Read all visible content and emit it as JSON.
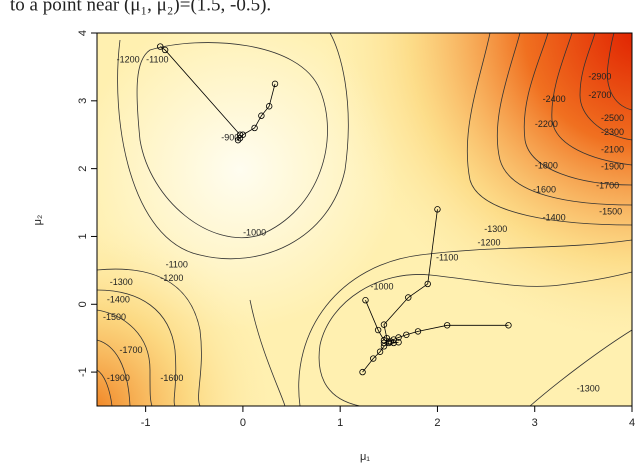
{
  "chart_data": {
    "type": "contour",
    "caption": "to a point near (μ₁, μ₂)=(1.5, -0.5).",
    "x_label": "μ₁",
    "y_label": "μ₂",
    "xlim": [
      -1.5,
      4
    ],
    "ylim": [
      -1.5,
      4
    ],
    "xticks": [
      -1,
      0,
      1,
      2,
      3,
      4
    ],
    "yticks": [
      -1,
      0,
      1,
      2,
      3,
      4
    ],
    "contour_labels": [
      {
        "level": -1200,
        "x": -1.18,
        "y": 3.6
      },
      {
        "level": -1100,
        "x": -0.88,
        "y": 3.6
      },
      {
        "level": -900,
        "x": -0.13,
        "y": 2.45
      },
      {
        "level": -1000,
        "x": 0.12,
        "y": 1.05
      },
      {
        "level": -1100,
        "x": -0.68,
        "y": 0.58
      },
      {
        "level": -1200,
        "x": -0.73,
        "y": 0.38
      },
      {
        "level": -1300,
        "x": -1.25,
        "y": 0.32
      },
      {
        "level": -1400,
        "x": -1.28,
        "y": 0.06
      },
      {
        "level": -1500,
        "x": -1.32,
        "y": -0.2
      },
      {
        "level": -1700,
        "x": -1.15,
        "y": -0.68
      },
      {
        "level": -1900,
        "x": -1.28,
        "y": -1.1
      },
      {
        "level": -1600,
        "x": -0.73,
        "y": -1.1
      },
      {
        "level": -1000,
        "x": 1.43,
        "y": 0.25
      },
      {
        "level": -1100,
        "x": 2.1,
        "y": 0.68
      },
      {
        "level": -1200,
        "x": 2.53,
        "y": 0.9
      },
      {
        "level": -1300,
        "x": 2.6,
        "y": 1.1
      },
      {
        "level": -1400,
        "x": 3.2,
        "y": 1.27
      },
      {
        "level": -1500,
        "x": 3.78,
        "y": 1.36
      },
      {
        "level": -1600,
        "x": 3.1,
        "y": 1.68
      },
      {
        "level": -1700,
        "x": 3.75,
        "y": 1.74
      },
      {
        "level": -1800,
        "x": 3.12,
        "y": 2.04
      },
      {
        "level": -1900,
        "x": 3.8,
        "y": 2.02
      },
      {
        "level": -2100,
        "x": 3.8,
        "y": 2.27
      },
      {
        "level": -2200,
        "x": 3.12,
        "y": 2.65
      },
      {
        "level": -2300,
        "x": 3.8,
        "y": 2.53
      },
      {
        "level": -2400,
        "x": 3.2,
        "y": 3.02
      },
      {
        "level": -2500,
        "x": 3.8,
        "y": 2.74
      },
      {
        "level": -2700,
        "x": 3.67,
        "y": 3.08
      },
      {
        "level": -2900,
        "x": 3.67,
        "y": 3.35
      },
      {
        "level": -1300,
        "x": 3.55,
        "y": -1.25
      }
    ],
    "series": [
      {
        "x": [
          -0.85,
          -0.8,
          -0.03
        ],
        "y": [
          3.8,
          3.75,
          2.5
        ]
      },
      {
        "x": [
          0.33,
          0.27,
          0.19,
          0.12,
          0.0,
          -0.03,
          -0.05
        ],
        "y": [
          3.25,
          2.92,
          2.78,
          2.6,
          2.5,
          2.45,
          2.42
        ]
      },
      {
        "x": [
          2.0,
          1.9,
          1.7,
          1.45,
          1.48,
          1.52,
          1.55,
          1.6
        ],
        "y": [
          1.4,
          0.3,
          0.1,
          -0.3,
          -0.5,
          -0.55,
          -0.57,
          -0.56
        ]
      },
      {
        "x": [
          2.73,
          2.1,
          1.8,
          1.68,
          1.6,
          1.55,
          1.5,
          1.45
        ],
        "y": [
          -0.31,
          -0.31,
          -0.4,
          -0.45,
          -0.49,
          -0.52,
          -0.55,
          -0.57
        ]
      },
      {
        "x": [
          1.23,
          1.34,
          1.41,
          1.45,
          1.5
        ],
        "y": [
          -1.0,
          -0.8,
          -0.7,
          -0.62,
          -0.57
        ]
      },
      {
        "x": [
          1.26,
          1.39,
          1.45
        ],
        "y": [
          0.06,
          -0.38,
          -0.53
        ]
      }
    ]
  }
}
